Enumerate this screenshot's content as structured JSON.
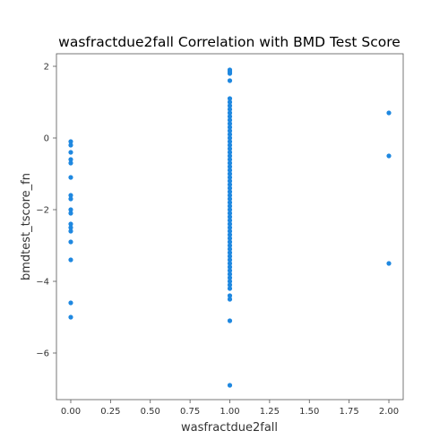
{
  "chart_data": {
    "type": "scatter",
    "title": "wasfractdue2fall Correlation with BMD Test Score",
    "xlabel": "wasfractdue2fall",
    "ylabel": "bmdtest_tscore_fn",
    "xlim": [
      -0.09,
      2.09
    ],
    "ylim": [
      -7.3,
      2.35
    ],
    "x_ticks": [
      0.0,
      0.25,
      0.5,
      0.75,
      1.0,
      1.25,
      1.5,
      1.75,
      2.0
    ],
    "x_tick_labels": [
      "0.00",
      "0.25",
      "0.50",
      "0.75",
      "1.00",
      "1.25",
      "1.50",
      "1.75",
      "2.00"
    ],
    "y_ticks": [
      -6,
      -4,
      -2,
      0,
      2
    ],
    "y_tick_labels": [
      "−6",
      "−4",
      "−2",
      "0",
      "2"
    ],
    "grid": false,
    "marker_color": "#1f88e0",
    "series": [
      {
        "points": [
          [
            0,
            -0.1
          ],
          [
            0,
            -0.2
          ],
          [
            0,
            -0.4
          ],
          [
            0,
            -0.6
          ],
          [
            0,
            -0.7
          ],
          [
            0,
            -1.1
          ],
          [
            0,
            -1.6
          ],
          [
            0,
            -1.7
          ],
          [
            0,
            -2.0
          ],
          [
            0,
            -2.1
          ],
          [
            0,
            -2.4
          ],
          [
            0,
            -2.5
          ],
          [
            0,
            -2.6
          ],
          [
            0,
            -2.9
          ],
          [
            0,
            -3.4
          ],
          [
            0,
            -4.6
          ],
          [
            0,
            -5.0
          ],
          [
            1,
            1.9
          ],
          [
            1,
            1.85
          ],
          [
            1,
            1.8
          ],
          [
            1,
            1.6
          ],
          [
            1,
            1.1
          ],
          [
            1,
            1.0
          ],
          [
            1,
            0.9
          ],
          [
            1,
            0.8
          ],
          [
            1,
            0.7
          ],
          [
            1,
            0.6
          ],
          [
            1,
            0.5
          ],
          [
            1,
            0.4
          ],
          [
            1,
            0.3
          ],
          [
            1,
            0.2
          ],
          [
            1,
            0.1
          ],
          [
            1,
            0.0
          ],
          [
            1,
            -0.1
          ],
          [
            1,
            -0.2
          ],
          [
            1,
            -0.3
          ],
          [
            1,
            -0.4
          ],
          [
            1,
            -0.5
          ],
          [
            1,
            -0.6
          ],
          [
            1,
            -0.7
          ],
          [
            1,
            -0.8
          ],
          [
            1,
            -0.9
          ],
          [
            1,
            -1.0
          ],
          [
            1,
            -1.1
          ],
          [
            1,
            -1.2
          ],
          [
            1,
            -1.3
          ],
          [
            1,
            -1.4
          ],
          [
            1,
            -1.5
          ],
          [
            1,
            -1.6
          ],
          [
            1,
            -1.7
          ],
          [
            1,
            -1.8
          ],
          [
            1,
            -1.9
          ],
          [
            1,
            -2.0
          ],
          [
            1,
            -2.1
          ],
          [
            1,
            -2.2
          ],
          [
            1,
            -2.3
          ],
          [
            1,
            -2.4
          ],
          [
            1,
            -2.5
          ],
          [
            1,
            -2.6
          ],
          [
            1,
            -2.7
          ],
          [
            1,
            -2.8
          ],
          [
            1,
            -2.9
          ],
          [
            1,
            -3.0
          ],
          [
            1,
            -3.1
          ],
          [
            1,
            -3.2
          ],
          [
            1,
            -3.3
          ],
          [
            1,
            -3.4
          ],
          [
            1,
            -3.5
          ],
          [
            1,
            -3.6
          ],
          [
            1,
            -3.7
          ],
          [
            1,
            -3.8
          ],
          [
            1,
            -3.9
          ],
          [
            1,
            -4.0
          ],
          [
            1,
            -4.1
          ],
          [
            1,
            -4.2
          ],
          [
            1,
            -4.4
          ],
          [
            1,
            -4.5
          ],
          [
            1,
            -5.1
          ],
          [
            1,
            -6.9
          ],
          [
            2,
            0.7
          ],
          [
            2,
            -0.5
          ],
          [
            2,
            -3.5
          ]
        ]
      }
    ]
  }
}
